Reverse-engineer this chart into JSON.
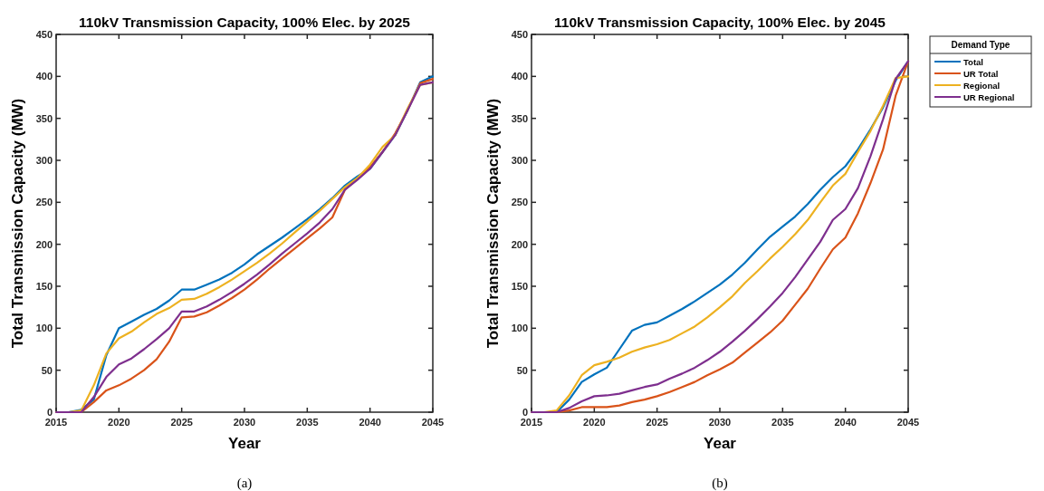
{
  "chart_data": [
    {
      "type": "line",
      "title": "110kV Transmission Capacity, 100% Elec. by 2025",
      "xlabel": "Year",
      "ylabel": "Total Transmission Capacity (MW)",
      "annotations": [
        "(a)"
      ],
      "x": [
        2015,
        2016,
        2017,
        2018,
        2019,
        2020,
        2021,
        2022,
        2023,
        2024,
        2025,
        2026,
        2027,
        2028,
        2029,
        2030,
        2031,
        2032,
        2033,
        2034,
        2035,
        2036,
        2037,
        2038,
        2039,
        2040,
        2041,
        2042,
        2043,
        2044,
        2045
      ],
      "series": [
        {
          "color": "#0072bd",
          "values": [
            0,
            0,
            3,
            15,
            68,
            100,
            108,
            116,
            123,
            133,
            146,
            146,
            152,
            158,
            166,
            176,
            188,
            198,
            208,
            219,
            230,
            242,
            255,
            270,
            281,
            290,
            310,
            330,
            360,
            393,
            400
          ]
        },
        {
          "color": "#d95319",
          "values": [
            0,
            0,
            0,
            12,
            26,
            32,
            40,
            50,
            63,
            84,
            113,
            114,
            119,
            127,
            136,
            146,
            158,
            171,
            183,
            195,
            207,
            219,
            232,
            265,
            278,
            292,
            310,
            332,
            360,
            392,
            397
          ]
        },
        {
          "color": "#edb120",
          "values": [
            0,
            0,
            2,
            32,
            70,
            88,
            96,
            107,
            117,
            124,
            134,
            135,
            141,
            149,
            158,
            168,
            178,
            189,
            201,
            214,
            227,
            240,
            254,
            268,
            279,
            295,
            316,
            330,
            362,
            390,
            393
          ]
        },
        {
          "color": "#7e2f8e",
          "values": [
            0,
            0,
            0,
            18,
            42,
            57,
            64,
            75,
            87,
            100,
            120,
            120,
            126,
            134,
            143,
            153,
            164,
            176,
            189,
            201,
            213,
            226,
            242,
            265,
            277,
            290,
            310,
            330,
            360,
            390,
            393
          ]
        }
      ],
      "xlim": [
        2015,
        2045
      ],
      "xticks": [
        2015,
        2020,
        2025,
        2030,
        2035,
        2040,
        2045
      ],
      "ylim": [
        0,
        450
      ],
      "yticks": [
        0,
        50,
        100,
        150,
        200,
        250,
        300,
        350,
        400,
        450
      ],
      "grid": false,
      "legend": false
    },
    {
      "type": "line",
      "title": "110kV Transmission Capacity, 100% Elec. by 2045",
      "xlabel": "Year",
      "ylabel": "Total Transmission Capacity (MW)",
      "annotations": [
        "(b)"
      ],
      "legend_title": "Demand Type",
      "x": [
        2015,
        2016,
        2017,
        2018,
        2019,
        2020,
        2021,
        2022,
        2023,
        2024,
        2025,
        2026,
        2027,
        2028,
        2029,
        2030,
        2031,
        2032,
        2033,
        2034,
        2035,
        2036,
        2037,
        2038,
        2039,
        2040,
        2041,
        2042,
        2043,
        2044,
        2045
      ],
      "series": [
        {
          "name": "Total",
          "color": "#0072bd",
          "values": [
            0,
            0,
            0,
            15,
            36,
            45,
            53,
            75,
            97,
            104,
            107,
            115,
            123,
            132,
            142,
            152,
            164,
            178,
            194,
            209,
            221,
            233,
            248,
            265,
            280,
            293,
            313,
            337,
            363,
            395,
            418
          ]
        },
        {
          "name": "UR Total",
          "color": "#d95319",
          "values": [
            0,
            0,
            0,
            2,
            6,
            6,
            6,
            8,
            12,
            15,
            19,
            24,
            30,
            36,
            44,
            51,
            59,
            71,
            83,
            95,
            109,
            128,
            147,
            171,
            194,
            208,
            237,
            273,
            313,
            377,
            418
          ]
        },
        {
          "name": "Regional",
          "color": "#edb120",
          "values": [
            0,
            0,
            2,
            20,
            44,
            56,
            60,
            65,
            72,
            77,
            81,
            86,
            94,
            102,
            113,
            125,
            138,
            154,
            168,
            183,
            197,
            212,
            229,
            250,
            270,
            284,
            310,
            335,
            365,
            398,
            400
          ]
        },
        {
          "name": "UR Regional",
          "color": "#7e2f8e",
          "values": [
            0,
            0,
            0,
            5,
            13,
            19,
            20,
            22,
            26,
            30,
            33,
            40,
            46,
            53,
            62,
            72,
            84,
            97,
            111,
            126,
            142,
            161,
            182,
            203,
            229,
            242,
            267,
            305,
            349,
            397,
            418
          ]
        }
      ],
      "xlim": [
        2015,
        2045
      ],
      "xticks": [
        2015,
        2020,
        2025,
        2030,
        2035,
        2040,
        2045
      ],
      "ylim": [
        0,
        450
      ],
      "yticks": [
        0,
        50,
        100,
        150,
        200,
        250,
        300,
        350,
        400,
        450
      ],
      "grid": false,
      "legend": "right"
    }
  ]
}
